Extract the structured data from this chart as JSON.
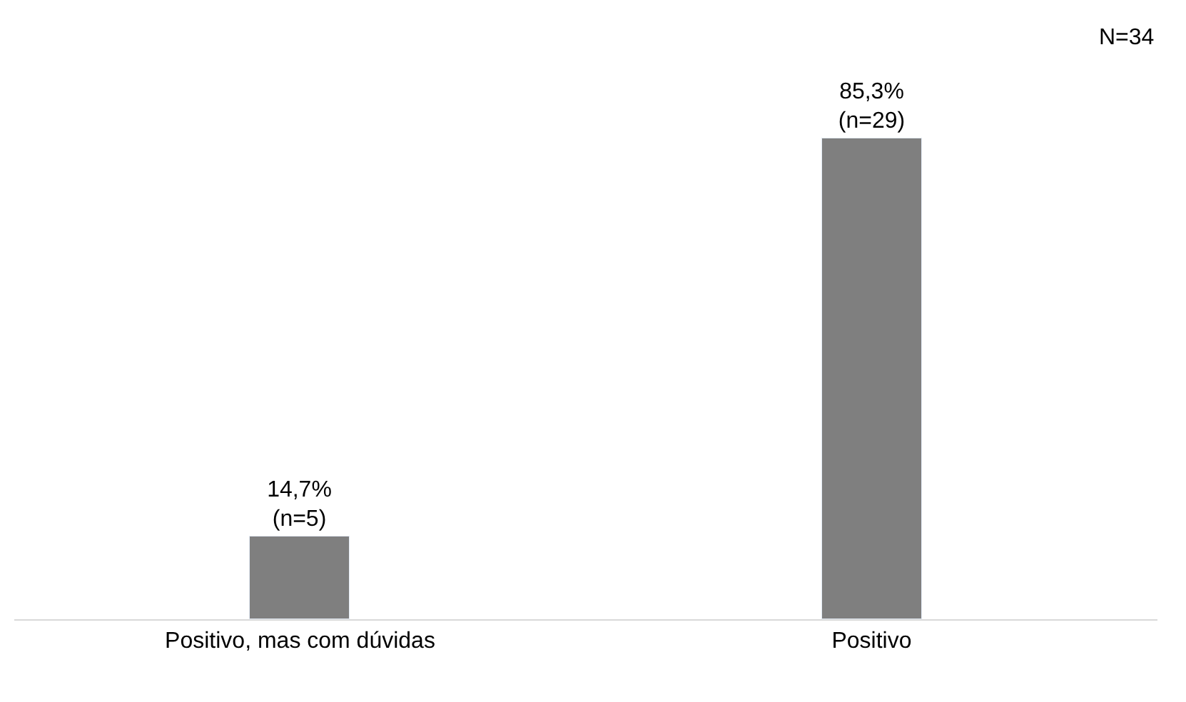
{
  "chart_data": {
    "type": "bar",
    "categories": [
      "Positivo, mas com dúvidas",
      "Positivo"
    ],
    "values": [
      14.7,
      85.3
    ],
    "value_labels": [
      "14,7%\n(n=5)",
      "85,3%\n(n=29)"
    ],
    "color": "#7f7f7f",
    "annotations": [
      "N=34"
    ]
  }
}
